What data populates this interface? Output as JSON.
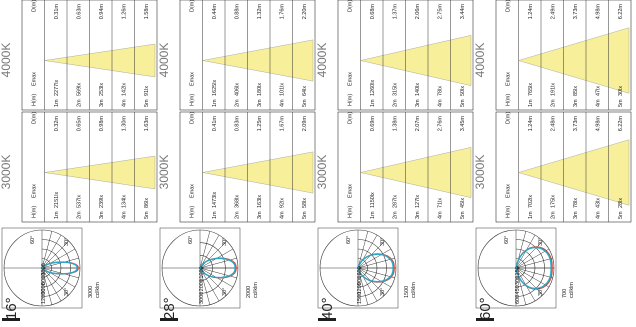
{
  "colors": {
    "cone_fill": "#f7ef9a",
    "curve_blue": "#2aa6c8",
    "curve_red": "#d24a3c",
    "grid": "#333333",
    "accent_bar": "#1f1f1f"
  },
  "panels": [
    {
      "beam_angle": "16°",
      "polar": {
        "rings": [
          "3000",
          "6000",
          "9000",
          "12000"
        ],
        "max_label": "3000",
        "unit": "cd/klm",
        "angles": [
          "60°",
          "30°",
          "30°"
        ],
        "beam_ratio": 0.17
      },
      "header_3000": "3000K",
      "header_4000": "4000K",
      "table_3000": {
        "col_h": "H(m)",
        "col_emax": "Emax",
        "col_d": "D(m)",
        "rows": [
          {
            "h": "1m",
            "emax": "2151lx",
            "d": "0.32m"
          },
          {
            "h": "2m",
            "emax": "537lx",
            "d": "0.65m"
          },
          {
            "h": "3m",
            "emax": "239lx",
            "d": "0.98m"
          },
          {
            "h": "4m",
            "emax": "134lx",
            "d": "1.30m"
          },
          {
            "h": "5m",
            "emax": "86lx",
            "d": "1.63m"
          }
        ]
      },
      "table_4000": {
        "col_h": "H(m)",
        "col_emax": "Emax",
        "col_d": "D(m)",
        "rows": [
          {
            "h": "1m",
            "emax": "2277lx",
            "d": "0.31m"
          },
          {
            "h": "2m",
            "emax": "569lx",
            "d": "0.63m"
          },
          {
            "h": "3m",
            "emax": "253lx",
            "d": "0.94m"
          },
          {
            "h": "4m",
            "emax": "142lx",
            "d": "1.26m"
          },
          {
            "h": "5m",
            "emax": "91lx",
            "d": "1.58m"
          }
        ]
      }
    },
    {
      "beam_angle": "28°",
      "polar": {
        "rings": [
          "1000",
          "2000",
          "3000"
        ],
        "max_label": "2000",
        "unit": "cd/klm",
        "angles": [
          "60°",
          "30°",
          "30°"
        ],
        "beam_ratio": 0.28
      },
      "header_3000": "3000K",
      "header_4000": "4000K",
      "table_3000": {
        "col_h": "H(m)",
        "col_emax": "Emax",
        "col_d": "D(m)",
        "rows": [
          {
            "h": "1m",
            "emax": "1473lx",
            "d": "0.41m"
          },
          {
            "h": "2m",
            "emax": "368lx",
            "d": "0.83m"
          },
          {
            "h": "3m",
            "emax": "163lx",
            "d": "1.25m"
          },
          {
            "h": "4m",
            "emax": "92lx",
            "d": "1.67m"
          },
          {
            "h": "5m",
            "emax": "58lx",
            "d": "2.09m"
          }
        ]
      },
      "table_4000": {
        "col_h": "H(m)",
        "col_emax": "Emax",
        "col_d": "D(m)",
        "rows": [
          {
            "h": "1m",
            "emax": "1625lx",
            "d": "0.44m"
          },
          {
            "h": "2m",
            "emax": "406lx",
            "d": "0.88m"
          },
          {
            "h": "3m",
            "emax": "180lx",
            "d": "1.32m"
          },
          {
            "h": "4m",
            "emax": "101lx",
            "d": "1.76m"
          },
          {
            "h": "5m",
            "emax": "64lx",
            "d": "2.20m"
          }
        ]
      }
    },
    {
      "beam_angle": "40°",
      "polar": {
        "rings": [
          "600",
          "900",
          "1200",
          "1500"
        ],
        "max_label": "1500",
        "unit": "cd/klm",
        "angles": [
          "60°",
          "30°",
          "30°"
        ],
        "beam_ratio": 0.4
      },
      "header_3000": "3000K",
      "header_4000": "4000K",
      "table_3000": {
        "col_h": "H(m)",
        "col_emax": "Emax",
        "col_d": "D(m)",
        "rows": [
          {
            "h": "1m",
            "emax": "1150lx",
            "d": "0.69m"
          },
          {
            "h": "2m",
            "emax": "287lx",
            "d": "1.38m"
          },
          {
            "h": "3m",
            "emax": "127lx",
            "d": "2.07m"
          },
          {
            "h": "4m",
            "emax": "71lx",
            "d": "2.76m"
          },
          {
            "h": "5m",
            "emax": "45lx",
            "d": "3.45m"
          }
        ]
      },
      "table_4000": {
        "col_h": "H(m)",
        "col_emax": "Emax",
        "col_d": "D(m)",
        "rows": [
          {
            "h": "1m",
            "emax": "1260lx",
            "d": "0.68m"
          },
          {
            "h": "2m",
            "emax": "315lx",
            "d": "1.37m"
          },
          {
            "h": "3m",
            "emax": "140lx",
            "d": "2.06m"
          },
          {
            "h": "4m",
            "emax": "78lx",
            "d": "2.75m"
          },
          {
            "h": "5m",
            "emax": "50lx",
            "d": "3.44m"
          }
        ]
      }
    },
    {
      "beam_angle": "60°",
      "polar": {
        "rings": [
          "150",
          "300",
          "450",
          "600"
        ],
        "max_label": "700",
        "unit": "cd/klm",
        "angles": [
          "60°",
          "30°",
          "30°"
        ],
        "beam_ratio": 0.6
      },
      "header_3000": "3000K",
      "header_4000": "4000K",
      "table_3000": {
        "col_h": "H(m)",
        "col_emax": "Emax",
        "col_d": "D(m)",
        "rows": [
          {
            "h": "1m",
            "emax": "702lx",
            "d": "1.24m"
          },
          {
            "h": "2m",
            "emax": "175lx",
            "d": "2.48m"
          },
          {
            "h": "3m",
            "emax": "78lx",
            "d": "3.73m"
          },
          {
            "h": "4m",
            "emax": "43lx",
            "d": "4.98m"
          },
          {
            "h": "5m",
            "emax": "28lx",
            "d": "6.22m"
          }
        ]
      },
      "table_4000": {
        "col_h": "H(m)",
        "col_emax": "Emax",
        "col_d": "D(m)",
        "rows": [
          {
            "h": "1m",
            "emax": "765lx",
            "d": "1.24m"
          },
          {
            "h": "2m",
            "emax": "191lx",
            "d": "2.49m"
          },
          {
            "h": "3m",
            "emax": "85lx",
            "d": "3.73m"
          },
          {
            "h": "4m",
            "emax": "47lx",
            "d": "4.98m"
          },
          {
            "h": "5m",
            "emax": "30lx",
            "d": "6.22m"
          }
        ]
      }
    }
  ]
}
